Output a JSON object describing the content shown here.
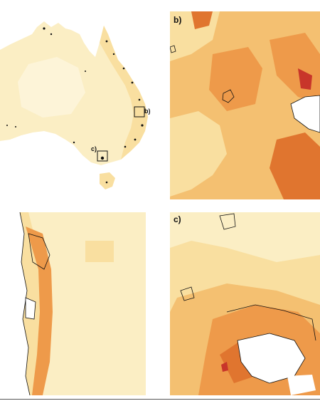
{
  "panels": {
    "overview": {
      "inset_b_label": "b)",
      "inset_c_label": "c)"
    },
    "b": {
      "label": "b)"
    },
    "c": {
      "label": "c)"
    }
  },
  "colors": {
    "pale": "#fbeec4",
    "light": "#f9dfa0",
    "mid": "#f4c071",
    "orange": "#ee9a4a",
    "deep": "#e0752f",
    "red": "#c8352a",
    "outline": "#111111"
  }
}
